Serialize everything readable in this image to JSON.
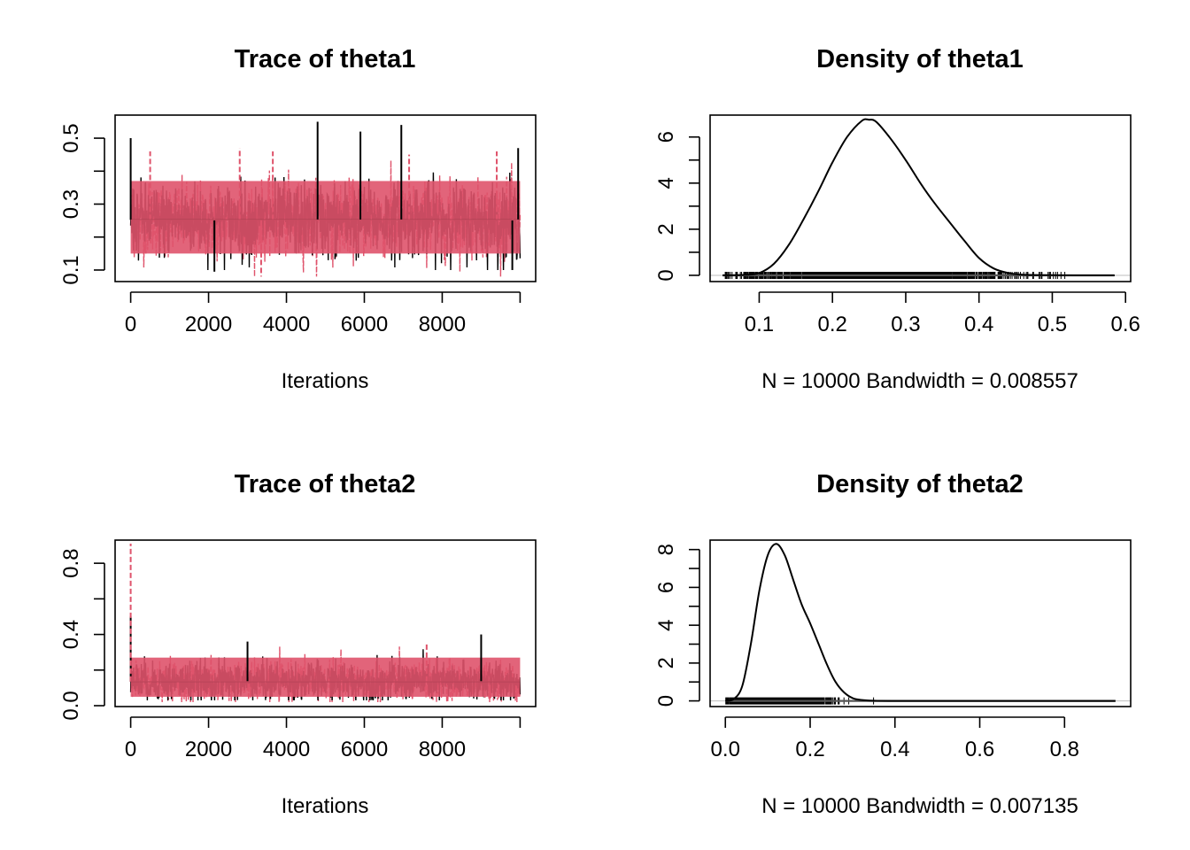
{
  "colors": {
    "chain1": "#000000",
    "chain2": "#DF536B",
    "rug_line": "#BEBEBE",
    "frame": "#000000"
  },
  "chart_data": [
    {
      "type": "line",
      "title": "Trace of theta1",
      "xlabel": "Iterations",
      "ylabel": "",
      "xlim": [
        -400,
        10400
      ],
      "ylim": [
        0.065,
        0.57
      ],
      "xticks": [
        "0",
        "2000",
        "4000",
        "6000",
        "8000"
      ],
      "xtick_values": [
        0,
        2000,
        4000,
        6000,
        8000
      ],
      "yticks": [
        "0.1",
        "0.3",
        "0.5"
      ],
      "ytick_values": [
        0.1,
        0.3,
        0.5
      ],
      "yminor": [
        0.2,
        0.4
      ],
      "series": [
        {
          "color": "#000000",
          "mean": 0.252,
          "band": [
            0.15,
            0.37
          ],
          "extremes": [
            0.1,
            0.55
          ],
          "spikes": [
            [
              0,
              0.5
            ],
            [
              4800,
              0.55
            ],
            [
              5900,
              0.52
            ],
            [
              6950,
              0.54
            ],
            [
              9950,
              0.47
            ],
            [
              2150,
              0.095
            ],
            [
              9800,
              0.1
            ]
          ]
        },
        {
          "color": "#DF536B",
          "mean": 0.252,
          "band": [
            0.15,
            0.37
          ],
          "extremes": [
            0.08,
            0.47
          ],
          "spikes": [
            [
              500,
              0.46
            ],
            [
              2800,
              0.47
            ],
            [
              3650,
              0.46
            ],
            [
              3350,
              0.08
            ],
            [
              7150,
              0.45
            ],
            [
              9400,
              0.46
            ]
          ]
        }
      ]
    },
    {
      "type": "area",
      "title": "Density of theta1",
      "xlabel": "N = 10000   Bandwidth = 0.008557",
      "ylabel": "",
      "xlim": [
        0.033,
        0.607
      ],
      "ylim": [
        -0.27,
        6.95
      ],
      "xticks": [
        "0.1",
        "0.2",
        "0.3",
        "0.4",
        "0.5",
        "0.6"
      ],
      "xtick_values": [
        0.1,
        0.2,
        0.3,
        0.4,
        0.5,
        0.6
      ],
      "yticks": [
        "0",
        "2",
        "4",
        "6"
      ],
      "ytick_values": [
        0,
        2,
        4,
        6
      ],
      "yminor": [
        1,
        3,
        5
      ],
      "density": {
        "x": [
          0.05,
          0.08,
          0.1,
          0.12,
          0.14,
          0.16,
          0.18,
          0.2,
          0.22,
          0.24,
          0.25,
          0.26,
          0.28,
          0.3,
          0.32,
          0.34,
          0.36,
          0.38,
          0.4,
          0.42,
          0.44,
          0.46,
          0.5,
          0.55,
          0.585
        ],
        "y": [
          0,
          0.02,
          0.1,
          0.5,
          1.3,
          2.4,
          3.6,
          4.9,
          6.0,
          6.7,
          6.75,
          6.65,
          5.9,
          5.0,
          4.0,
          3.1,
          2.3,
          1.5,
          0.75,
          0.3,
          0.1,
          0.03,
          0.005,
          0,
          0
        ]
      },
      "rug_range": [
        0.05,
        0.585
      ]
    },
    {
      "type": "line",
      "title": "Trace of theta2",
      "xlabel": "Iterations",
      "ylabel": "",
      "xlim": [
        -400,
        10400
      ],
      "ylim": [
        -0.005,
        0.93
      ],
      "xticks": [
        "0",
        "2000",
        "4000",
        "6000",
        "8000"
      ],
      "xtick_values": [
        0,
        2000,
        4000,
        6000,
        8000
      ],
      "yticks": [
        "0.0",
        "0.4",
        "0.8"
      ],
      "ytick_values": [
        0,
        0.4,
        0.8
      ],
      "yminor": [
        0.2,
        0.6
      ],
      "series": [
        {
          "color": "#000000",
          "mean": 0.135,
          "band": [
            0.05,
            0.27
          ],
          "extremes": [
            0.03,
            0.5
          ],
          "spikes": [
            [
              0,
              0.5
            ],
            [
              9000,
              0.4
            ],
            [
              3000,
              0.36
            ]
          ]
        },
        {
          "color": "#DF536B",
          "mean": 0.135,
          "band": [
            0.05,
            0.27
          ],
          "extremes": [
            0.02,
            0.91
          ],
          "spikes": [
            [
              0,
              0.91
            ],
            [
              7600,
              0.35
            ]
          ]
        }
      ]
    },
    {
      "type": "area",
      "title": "Density of theta2",
      "xlabel": "N = 10000   Bandwidth = 0.007135",
      "ylabel": "",
      "xlim": [
        -0.036,
        0.956
      ],
      "ylim": [
        -0.3,
        8.5
      ],
      "xticks": [
        "0.0",
        "0.2",
        "0.4",
        "0.6",
        "0.8"
      ],
      "xtick_values": [
        0,
        0.2,
        0.4,
        0.6,
        0.8
      ],
      "yticks": [
        "0",
        "2",
        "4",
        "6",
        "8"
      ],
      "ytick_values": [
        0,
        2,
        4,
        6,
        8
      ],
      "yminor": [
        1,
        3,
        5,
        7
      ],
      "density": {
        "x": [
          0.0,
          0.02,
          0.04,
          0.06,
          0.08,
          0.1,
          0.12,
          0.14,
          0.16,
          0.18,
          0.2,
          0.22,
          0.24,
          0.26,
          0.28,
          0.3,
          0.32,
          0.35,
          0.4,
          0.5,
          0.6,
          0.7,
          0.8,
          0.92
        ],
        "y": [
          0,
          0.1,
          0.8,
          3.0,
          5.8,
          7.7,
          8.3,
          7.7,
          6.4,
          5.1,
          4.1,
          3.0,
          1.9,
          1.0,
          0.45,
          0.15,
          0.05,
          0.01,
          0,
          0,
          0,
          0,
          0,
          0
        ]
      },
      "rug_range": [
        0.0,
        0.92
      ]
    }
  ]
}
